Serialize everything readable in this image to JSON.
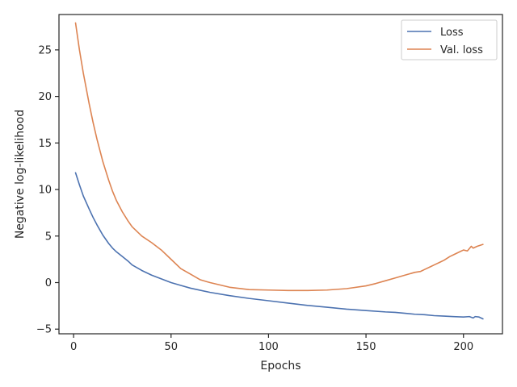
{
  "chart_data": {
    "type": "line",
    "xlabel": "Epochs",
    "ylabel": "Negative log-likelihood",
    "xlim": [
      -7.5,
      220
    ],
    "ylim": [
      -5.5,
      28.8
    ],
    "xticks": [
      0,
      50,
      100,
      150,
      200
    ],
    "yticks": [
      -5,
      0,
      5,
      10,
      15,
      20,
      25
    ],
    "ytick_labels": [
      "−5",
      "0",
      "5",
      "10",
      "15",
      "20",
      "25"
    ],
    "grid": false,
    "legend_position": "top-right",
    "series": [
      {
        "name": "Loss",
        "color": "#4c72b0",
        "x": [
          1,
          3,
          5,
          8,
          10,
          12,
          15,
          18,
          20,
          22,
          25,
          28,
          30,
          35,
          40,
          45,
          50,
          55,
          60,
          70,
          80,
          90,
          100,
          110,
          120,
          130,
          140,
          150,
          160,
          165,
          170,
          175,
          180,
          185,
          190,
          195,
          200,
          203,
          205,
          206,
          208,
          210
        ],
        "y": [
          11.8,
          10.5,
          9.3,
          7.9,
          7.0,
          6.2,
          5.1,
          4.2,
          3.7,
          3.3,
          2.8,
          2.3,
          1.9,
          1.3,
          0.8,
          0.4,
          0.0,
          -0.3,
          -0.6,
          -1.05,
          -1.4,
          -1.7,
          -1.95,
          -2.2,
          -2.45,
          -2.65,
          -2.85,
          -3.0,
          -3.15,
          -3.2,
          -3.3,
          -3.4,
          -3.45,
          -3.55,
          -3.6,
          -3.65,
          -3.7,
          -3.65,
          -3.8,
          -3.65,
          -3.7,
          -3.9
        ]
      },
      {
        "name": "Val. loss",
        "color": "#dd8452",
        "x": [
          1,
          3,
          5,
          8,
          10,
          12,
          15,
          18,
          20,
          22,
          25,
          28,
          30,
          35,
          40,
          45,
          50,
          55,
          60,
          65,
          70,
          80,
          90,
          100,
          110,
          120,
          130,
          140,
          150,
          155,
          160,
          165,
          170,
          175,
          178,
          180,
          183,
          185,
          188,
          190,
          193,
          195,
          198,
          200,
          202,
          204,
          205,
          207,
          210
        ],
        "y": [
          27.9,
          25.0,
          22.5,
          19.2,
          17.2,
          15.4,
          13.0,
          11.0,
          9.8,
          8.8,
          7.6,
          6.6,
          6.0,
          5.0,
          4.3,
          3.5,
          2.5,
          1.5,
          0.9,
          0.3,
          0.0,
          -0.5,
          -0.75,
          -0.8,
          -0.85,
          -0.85,
          -0.8,
          -0.65,
          -0.35,
          -0.1,
          0.2,
          0.5,
          0.8,
          1.1,
          1.2,
          1.4,
          1.7,
          1.9,
          2.2,
          2.4,
          2.8,
          3.0,
          3.3,
          3.5,
          3.4,
          3.9,
          3.7,
          3.9,
          4.1
        ]
      }
    ]
  }
}
